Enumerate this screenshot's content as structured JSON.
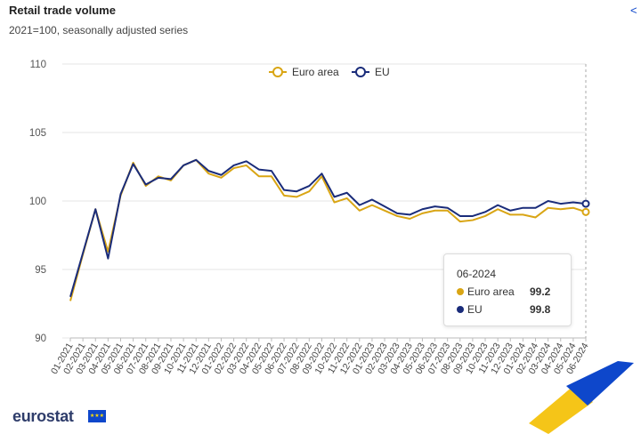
{
  "header": {
    "title": "Retail trade volume",
    "subtitle": "2021=100, seasonally adjusted series"
  },
  "tooltip": {
    "period": "06-2024",
    "rows": [
      {
        "label": "Euro area",
        "value": "99.2"
      },
      {
        "label": "EU",
        "value": "99.8"
      }
    ]
  },
  "logo": {
    "text": "eurostat"
  },
  "colors": {
    "euro_area": "#d9a514",
    "eu": "#1a2c7a",
    "grid": "#e6e6e6"
  },
  "chart_data": {
    "type": "line",
    "title": "Retail trade volume",
    "subtitle": "2021=100, seasonally adjusted series",
    "xlabel": "",
    "ylabel": "",
    "ylim": [
      90,
      110
    ],
    "yticks": [
      90,
      95,
      100,
      105,
      110
    ],
    "legend": "top-center",
    "x": [
      "01-2021",
      "02-2021",
      "03-2021",
      "04-2021",
      "05-2021",
      "06-2021",
      "07-2021",
      "08-2021",
      "09-2021",
      "10-2021",
      "11-2021",
      "12-2021",
      "01-2022",
      "02-2022",
      "03-2022",
      "04-2022",
      "05-2022",
      "06-2022",
      "07-2022",
      "08-2022",
      "09-2022",
      "10-2022",
      "11-2022",
      "12-2022",
      "01-2023",
      "02-2023",
      "03-2023",
      "04-2023",
      "05-2023",
      "06-2023",
      "07-2023",
      "08-2023",
      "09-2023",
      "10-2023",
      "11-2023",
      "12-2023",
      "01-2024",
      "02-2024",
      "03-2024",
      "04-2024",
      "05-2024",
      "06-2024"
    ],
    "series": [
      {
        "name": "Euro area",
        "values": [
          92.7,
          96.1,
          99.4,
          96.3,
          100.4,
          102.8,
          101.1,
          101.8,
          101.5,
          102.6,
          103.0,
          102.0,
          101.7,
          102.4,
          102.6,
          101.8,
          101.8,
          100.4,
          100.3,
          100.7,
          101.8,
          99.9,
          100.2,
          99.3,
          99.7,
          99.3,
          98.9,
          98.7,
          99.1,
          99.3,
          99.3,
          98.5,
          98.6,
          98.9,
          99.4,
          99.0,
          99.0,
          98.8,
          99.5,
          99.4,
          99.5,
          99.2
        ]
      },
      {
        "name": "EU",
        "values": [
          93.0,
          96.2,
          99.4,
          95.8,
          100.5,
          102.7,
          101.2,
          101.7,
          101.6,
          102.6,
          103.0,
          102.2,
          101.9,
          102.6,
          102.9,
          102.3,
          102.2,
          100.8,
          100.7,
          101.1,
          102.0,
          100.3,
          100.6,
          99.7,
          100.1,
          99.6,
          99.1,
          99.0,
          99.4,
          99.6,
          99.5,
          98.9,
          98.9,
          99.2,
          99.7,
          99.3,
          99.5,
          99.5,
          100.0,
          99.8,
          99.9,
          99.8
        ]
      }
    ]
  }
}
